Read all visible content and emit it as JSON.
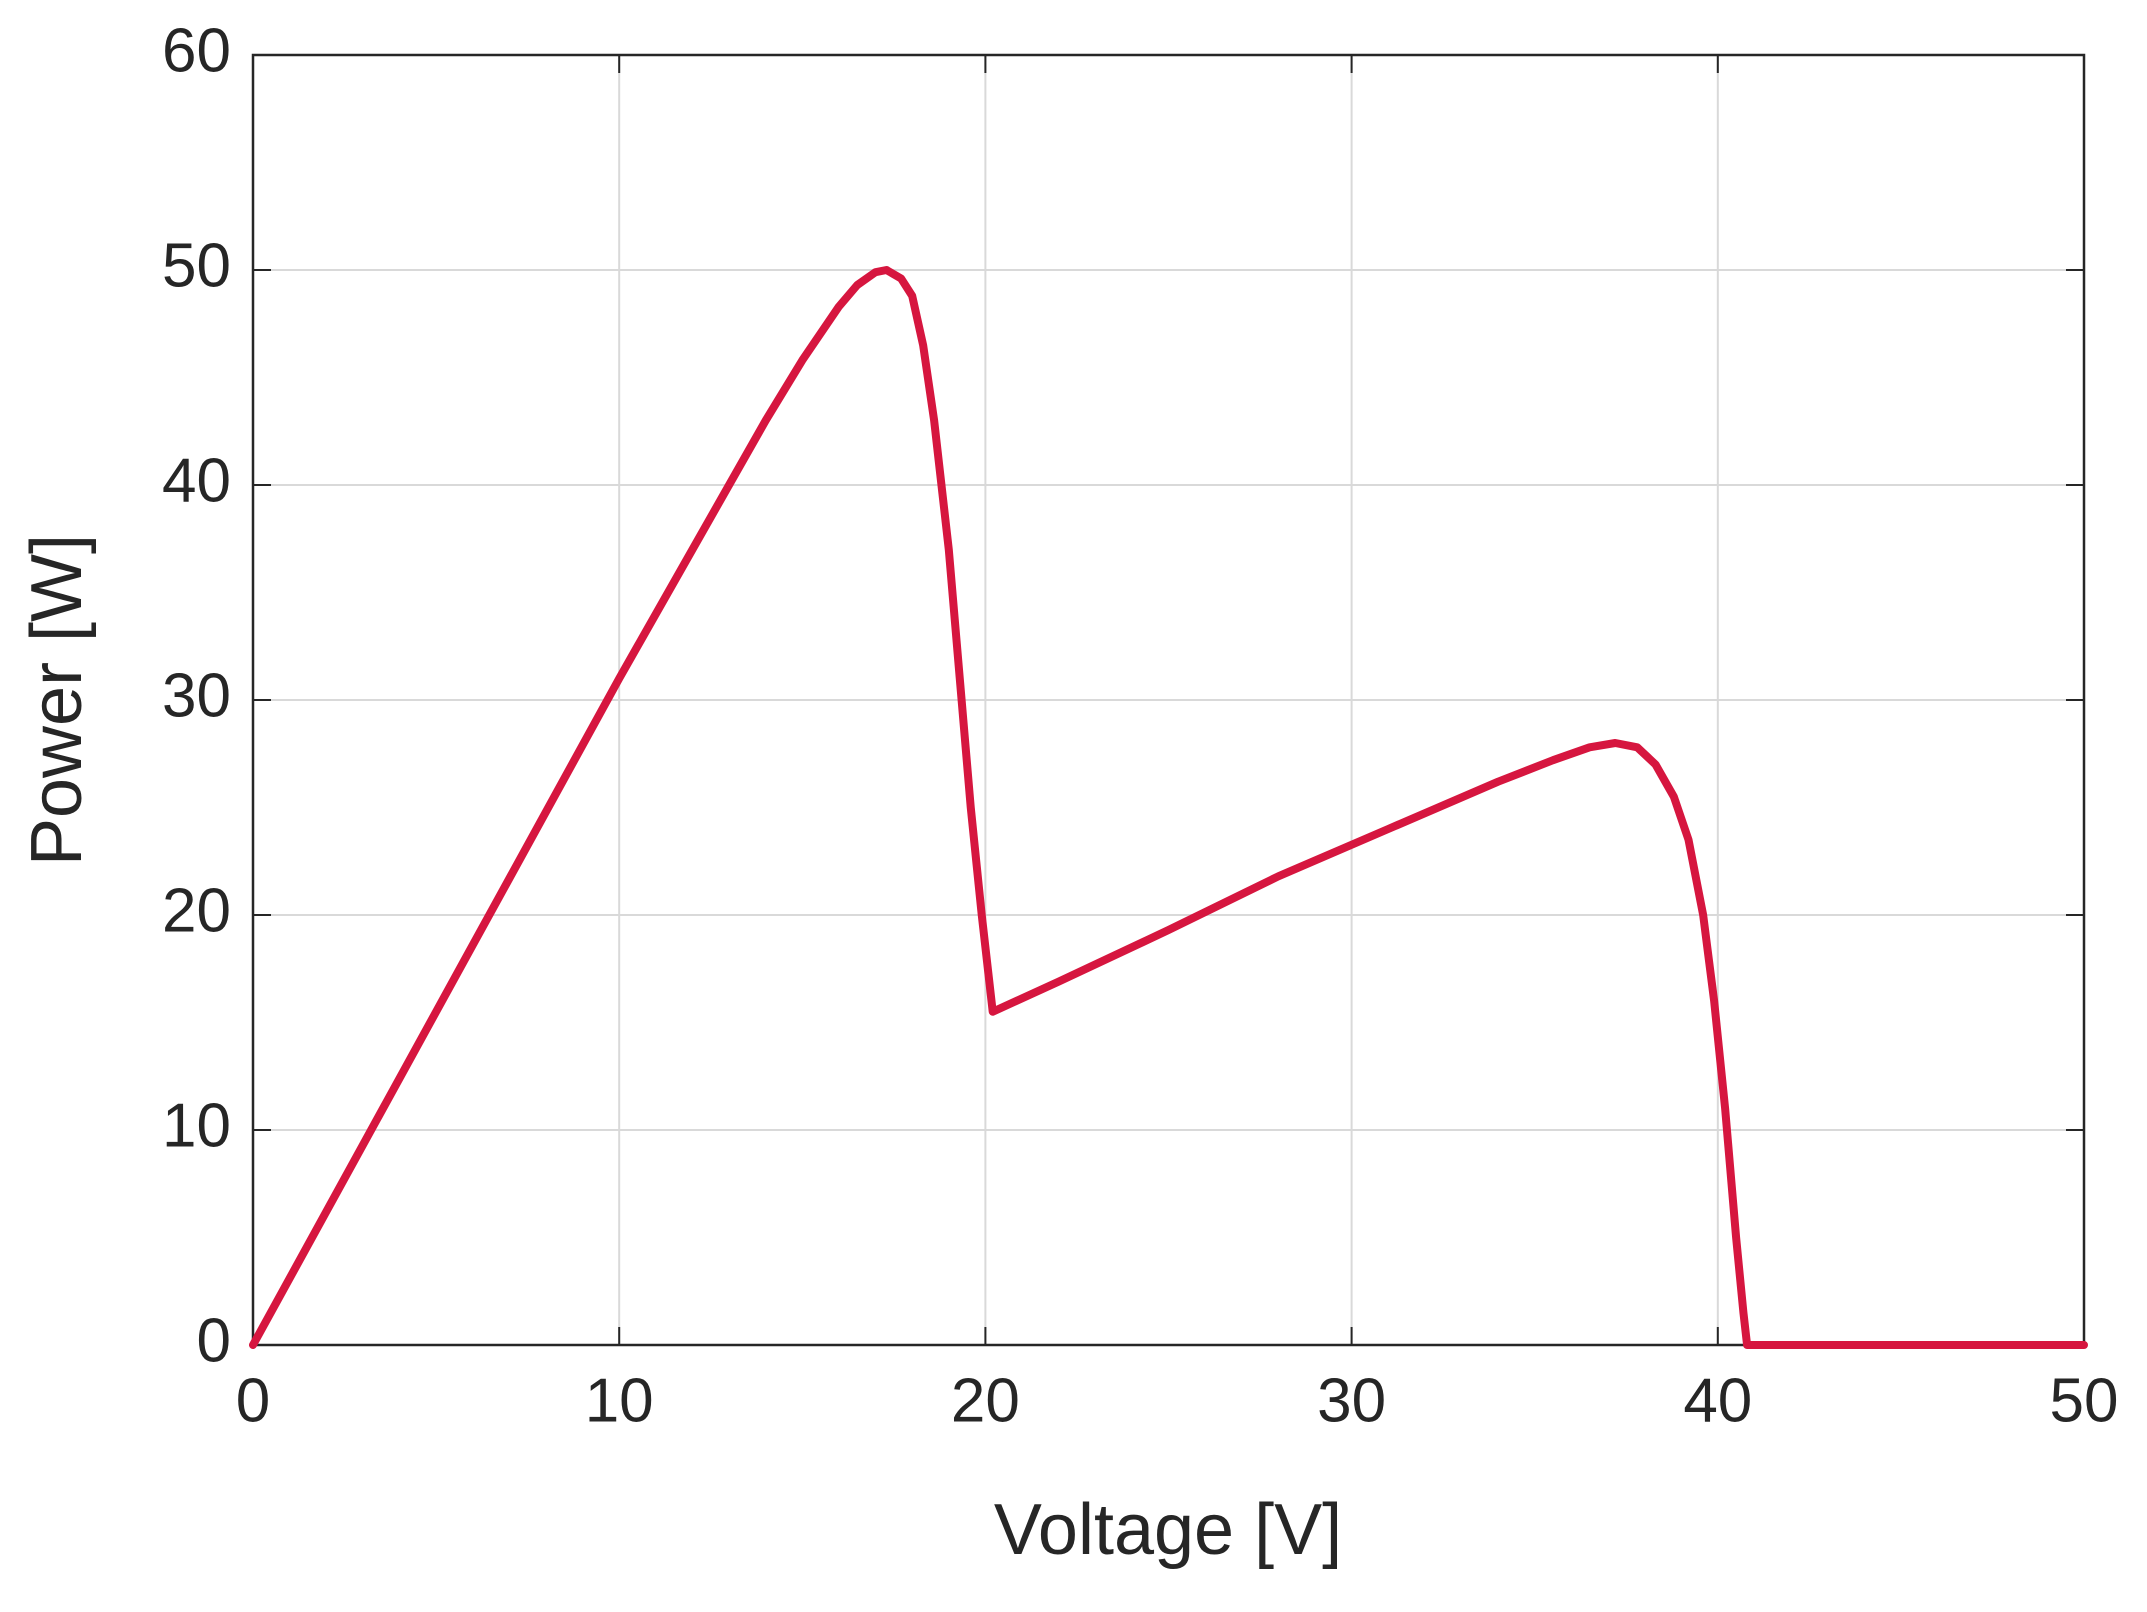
{
  "chart_data": {
    "type": "line",
    "x_label": "Voltage [V]",
    "y_label": "Power [W]",
    "x": [
      0,
      2,
      4,
      6,
      8,
      10,
      12,
      13,
      14,
      15,
      16,
      16.5,
      17,
      17.3,
      17.7,
      18,
      18.3,
      18.6,
      19,
      19.3,
      19.6,
      19.9,
      20.2,
      22,
      25,
      28,
      31,
      34,
      35.5,
      36.5,
      37.2,
      37.8,
      38.3,
      38.8,
      39.2,
      39.6,
      39.9,
      40.2,
      40.5,
      40.7,
      40.8,
      45,
      50
    ],
    "series": [
      {
        "name": "Power",
        "color": "#d6163f",
        "values": [
          0,
          6.2,
          12.4,
          18.6,
          24.8,
          31,
          37,
          40,
          43,
          45.8,
          48.3,
          49.3,
          49.9,
          50,
          49.6,
          48.8,
          46.5,
          43,
          37,
          31,
          25,
          20,
          15.5,
          16.9,
          19.3,
          21.8,
          24,
          26.2,
          27.2,
          27.8,
          28,
          27.8,
          27,
          25.5,
          23.5,
          20,
          16,
          11,
          5,
          1.5,
          0,
          0,
          0
        ]
      }
    ],
    "xlim": [
      0,
      50
    ],
    "xticks": [
      0,
      10,
      20,
      30,
      40,
      50
    ],
    "ylim": [
      0,
      60
    ],
    "yticks": [
      0,
      10,
      20,
      30,
      40,
      50,
      60
    ],
    "grid": true
  }
}
